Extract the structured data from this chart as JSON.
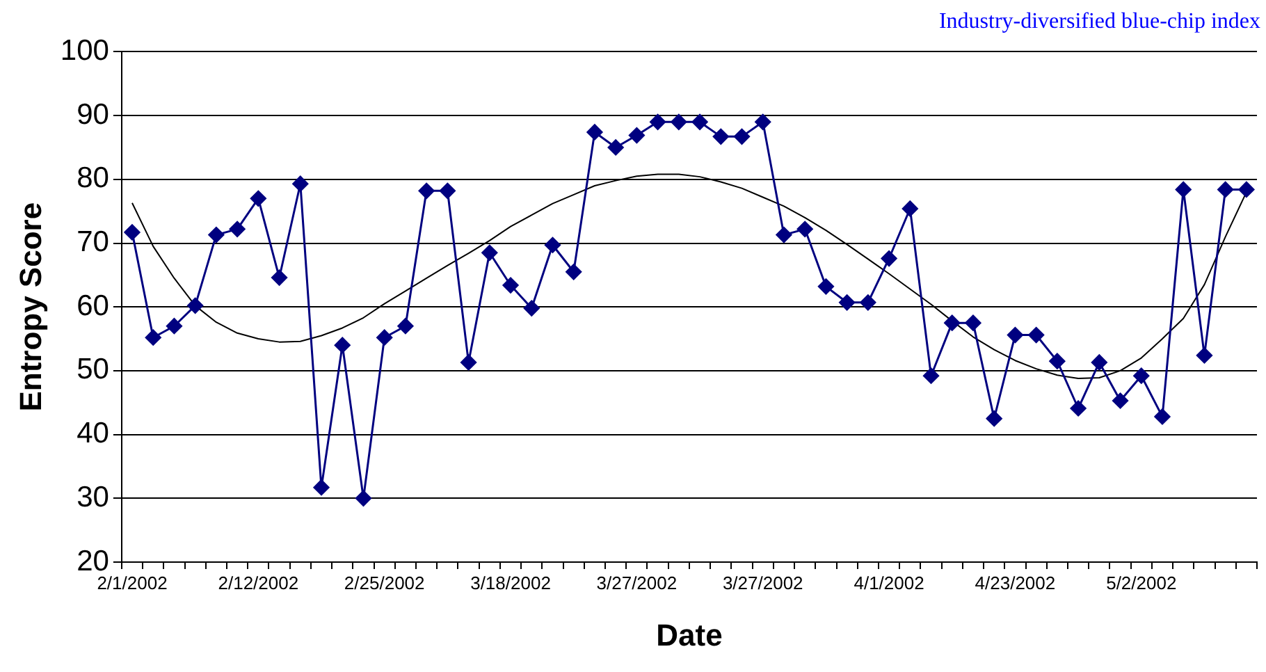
{
  "chart_data": {
    "type": "line",
    "title": "Industry-diversified blue-chip index",
    "xlabel": "Date",
    "ylabel": "Entropy Score",
    "categories": [
      "2/1/2002",
      null,
      null,
      null,
      null,
      null,
      "2/12/2002",
      null,
      null,
      null,
      null,
      null,
      "2/25/2002",
      null,
      null,
      null,
      null,
      null,
      "3/18/2002",
      null,
      null,
      null,
      null,
      null,
      "3/27/2002",
      null,
      null,
      null,
      null,
      null,
      "3/27/2002",
      null,
      null,
      null,
      null,
      null,
      "4/1/2002",
      null,
      null,
      null,
      null,
      null,
      "4/23/2002",
      null,
      null,
      null,
      null,
      null,
      "5/2/2002",
      null,
      null,
      null,
      null,
      null
    ],
    "series": [
      {
        "color": "#000080",
        "marker": "diamond",
        "values": [
          71.7,
          55.2,
          57,
          60.2,
          71.3,
          72.2,
          77,
          64.6,
          79.3,
          31.7,
          54,
          30,
          55.2,
          57,
          78.2,
          78.2,
          51.3,
          68.5,
          63.4,
          59.8,
          69.7,
          65.5,
          87.4,
          85,
          86.9,
          89,
          89,
          89,
          86.7,
          86.7,
          89,
          71.3,
          72.2,
          63.2,
          60.7,
          60.7,
          67.6,
          75.4,
          49.2,
          57.5,
          57.5,
          42.5,
          55.6,
          55.6,
          51.5,
          44.1,
          51.3,
          45.3,
          49.2,
          42.8,
          78.4,
          52.4,
          78.4,
          78.4
        ]
      },
      {
        "color": "#000000",
        "marker": "none",
        "values": [
          76.3,
          69.5,
          64.5,
          60.2,
          57.6,
          55.9,
          55,
          54.5,
          54.6,
          55.5,
          56.7,
          58.3,
          60.5,
          62.5,
          64.5,
          66.5,
          68.4,
          70.4,
          72.6,
          74.4,
          76.2,
          77.6,
          79,
          79.8,
          80.5,
          80.8,
          80.8,
          80.4,
          79.6,
          78.6,
          77.2,
          75.8,
          74,
          72,
          69.8,
          67.5,
          65.2,
          62.8,
          60.4,
          57.8,
          55.3,
          53.3,
          51.6,
          50.3,
          49.3,
          48.8,
          48.9,
          50,
          52,
          55,
          58.2,
          63.5,
          71,
          78
        ]
      }
    ],
    "ylim": [
      20,
      100
    ],
    "yticks": [
      20,
      30,
      40,
      50,
      60,
      70,
      80,
      90,
      100
    ],
    "grid": "y",
    "legend": false
  }
}
